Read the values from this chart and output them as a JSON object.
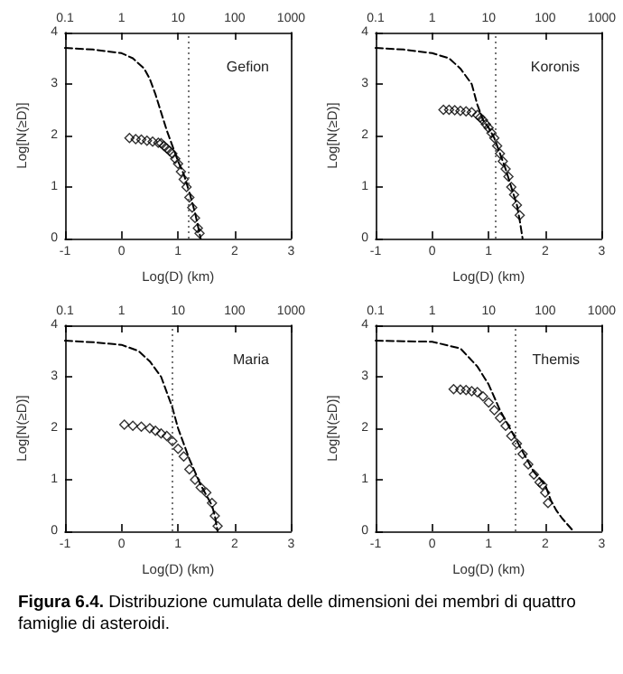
{
  "chart_data": [
    {
      "type": "line",
      "title": "Gefion",
      "xlabel": "Log(D) (km)",
      "ylabel": "Log[N(≥D)]",
      "xlim": [
        -1,
        3
      ],
      "xticks": [
        -1,
        0,
        1,
        2,
        3
      ],
      "ylim": [
        0,
        4
      ],
      "yticks": [
        0,
        1,
        2,
        3,
        4
      ],
      "x2lim": [
        0.1,
        1000
      ],
      "x2ticks": [
        0.1,
        1,
        10,
        100,
        1000
      ],
      "log": "x2",
      "grid": false,
      "legend": false,
      "ref_lines": [
        {
          "axis": "x",
          "value": 1.18,
          "line_style": "dotted",
          "color": "#555555"
        }
      ],
      "series": [
        {
          "color": "#000000",
          "line_style": "dashed",
          "marker": "none",
          "x": [
            -1,
            -0.5,
            0,
            0.2,
            0.4,
            0.5,
            0.6,
            0.7,
            0.8,
            0.9,
            1.0,
            1.1,
            1.2,
            1.3,
            1.4
          ],
          "values": [
            3.7,
            3.67,
            3.6,
            3.5,
            3.3,
            3.1,
            2.8,
            2.45,
            2.1,
            1.8,
            1.5,
            1.25,
            0.9,
            0.5,
            0
          ]
        },
        {
          "type": "scatter",
          "color": "#000000",
          "marker": "diamond",
          "x": [
            0.14,
            0.25,
            0.35,
            0.45,
            0.55,
            0.65,
            0.7,
            0.75,
            0.8,
            0.85,
            0.9,
            0.95,
            1.0,
            1.05,
            1.1,
            1.15,
            1.2,
            1.25,
            1.3,
            1.35,
            1.38
          ],
          "values": [
            1.95,
            1.93,
            1.92,
            1.9,
            1.88,
            1.86,
            1.85,
            1.8,
            1.75,
            1.7,
            1.65,
            1.55,
            1.45,
            1.3,
            1.15,
            1.0,
            0.8,
            0.6,
            0.4,
            0.2,
            0.1
          ]
        }
      ]
    },
    {
      "type": "line",
      "title": "Koronis",
      "xlabel": "Log(D) (km)",
      "ylabel": "Log[N(≥D)]",
      "xlim": [
        -1,
        3
      ],
      "xticks": [
        -1,
        0,
        1,
        2,
        3
      ],
      "ylim": [
        0,
        4
      ],
      "yticks": [
        0,
        1,
        2,
        3,
        4
      ],
      "x2lim": [
        0.1,
        1000
      ],
      "x2ticks": [
        0.1,
        1,
        10,
        100,
        1000
      ],
      "log": "x2",
      "grid": false,
      "legend": false,
      "ref_lines": [
        {
          "axis": "x",
          "value": 1.12,
          "line_style": "dotted",
          "color": "#555555"
        }
      ],
      "series": [
        {
          "color": "#000000",
          "line_style": "dashed",
          "marker": "none",
          "x": [
            -1,
            -0.5,
            0,
            0.3,
            0.5,
            0.7,
            0.8,
            0.9,
            1.0,
            1.1,
            1.2,
            1.3,
            1.4,
            1.5,
            1.55,
            1.6
          ],
          "values": [
            3.7,
            3.67,
            3.6,
            3.5,
            3.3,
            3.0,
            2.6,
            2.3,
            2.15,
            1.95,
            1.65,
            1.35,
            1.0,
            0.65,
            0.35,
            0
          ]
        },
        {
          "type": "scatter",
          "color": "#000000",
          "marker": "diamond",
          "x": [
            0.2,
            0.3,
            0.4,
            0.5,
            0.6,
            0.7,
            0.8,
            0.85,
            0.9,
            0.95,
            1.0,
            1.05,
            1.1,
            1.15,
            1.2,
            1.25,
            1.3,
            1.35,
            1.4,
            1.45,
            1.5,
            1.55
          ],
          "values": [
            2.5,
            2.5,
            2.49,
            2.48,
            2.47,
            2.45,
            2.4,
            2.35,
            2.3,
            2.22,
            2.15,
            2.05,
            1.95,
            1.8,
            1.65,
            1.5,
            1.35,
            1.2,
            1.0,
            0.85,
            0.65,
            0.45
          ]
        }
      ]
    },
    {
      "type": "line",
      "title": "Maria",
      "xlabel": "Log(D) (km)",
      "ylabel": "Log[N(≥D)]",
      "xlim": [
        -1,
        3
      ],
      "xticks": [
        -1,
        0,
        1,
        2,
        3
      ],
      "ylim": [
        0,
        4
      ],
      "yticks": [
        0,
        1,
        2,
        3,
        4
      ],
      "x2lim": [
        0.1,
        1000
      ],
      "x2ticks": [
        0.1,
        1,
        10,
        100,
        1000
      ],
      "log": "x2",
      "grid": false,
      "legend": false,
      "ref_lines": [
        {
          "axis": "x",
          "value": 0.88,
          "line_style": "dotted",
          "color": "#555555"
        }
      ],
      "series": [
        {
          "color": "#000000",
          "line_style": "dashed",
          "marker": "none",
          "x": [
            -1,
            -0.5,
            0,
            0.3,
            0.5,
            0.7,
            0.8,
            0.9,
            1.0,
            1.2,
            1.4,
            1.6,
            1.65,
            1.7
          ],
          "values": [
            3.7,
            3.67,
            3.62,
            3.5,
            3.3,
            3.0,
            2.7,
            2.4,
            2.0,
            1.4,
            0.9,
            0.5,
            0.3,
            0
          ]
        },
        {
          "type": "scatter",
          "color": "#000000",
          "marker": "diamond",
          "x": [
            0.05,
            0.2,
            0.35,
            0.5,
            0.6,
            0.7,
            0.8,
            0.9,
            1.0,
            1.1,
            1.2,
            1.3,
            1.4,
            1.5,
            1.6,
            1.65,
            1.7
          ],
          "values": [
            2.07,
            2.05,
            2.03,
            2.0,
            1.95,
            1.9,
            1.85,
            1.75,
            1.6,
            1.45,
            1.2,
            1.0,
            0.85,
            0.75,
            0.55,
            0.3,
            0.1
          ]
        }
      ]
    },
    {
      "type": "line",
      "title": "Themis",
      "xlabel": "Log(D) (km)",
      "ylabel": "Log[N(≥D)]",
      "xlim": [
        -1,
        3
      ],
      "xticks": [
        -1,
        0,
        1,
        2,
        3
      ],
      "ylim": [
        0,
        4
      ],
      "yticks": [
        0,
        1,
        2,
        3,
        4
      ],
      "x2lim": [
        0.1,
        1000
      ],
      "x2ticks": [
        0.1,
        1,
        10,
        100,
        1000
      ],
      "log": "x2",
      "grid": false,
      "legend": false,
      "annotations": [
        "Figura 6.4.",
        "Distribuzione cumulata delle dimensioni dei membri di quattro famiglie di asteroidi."
      ],
      "ref_lines": [
        {
          "axis": "x",
          "value": 1.46,
          "line_style": "dotted",
          "color": "#555555"
        }
      ],
      "series": [
        {
          "color": "#000000",
          "line_style": "dashed",
          "marker": "none",
          "x": [
            -1,
            -0.5,
            0,
            0.5,
            0.8,
            1.0,
            1.2,
            1.4,
            1.6,
            1.8,
            2.0,
            2.1,
            2.2,
            2.3,
            2.5
          ],
          "values": [
            3.7,
            3.69,
            3.68,
            3.55,
            3.2,
            2.85,
            2.35,
            1.95,
            1.55,
            1.15,
            0.9,
            0.6,
            0.4,
            0.25,
            0
          ]
        },
        {
          "type": "scatter",
          "color": "#000000",
          "marker": "diamond",
          "x": [
            0.38,
            0.5,
            0.6,
            0.7,
            0.8,
            0.9,
            1.0,
            1.1,
            1.2,
            1.3,
            1.4,
            1.5,
            1.6,
            1.7,
            1.8,
            1.9,
            1.95,
            2.0,
            2.05
          ],
          "values": [
            2.76,
            2.75,
            2.74,
            2.72,
            2.7,
            2.62,
            2.5,
            2.35,
            2.2,
            2.05,
            1.85,
            1.7,
            1.5,
            1.3,
            1.1,
            0.95,
            0.9,
            0.75,
            0.55
          ]
        }
      ]
    }
  ]
}
